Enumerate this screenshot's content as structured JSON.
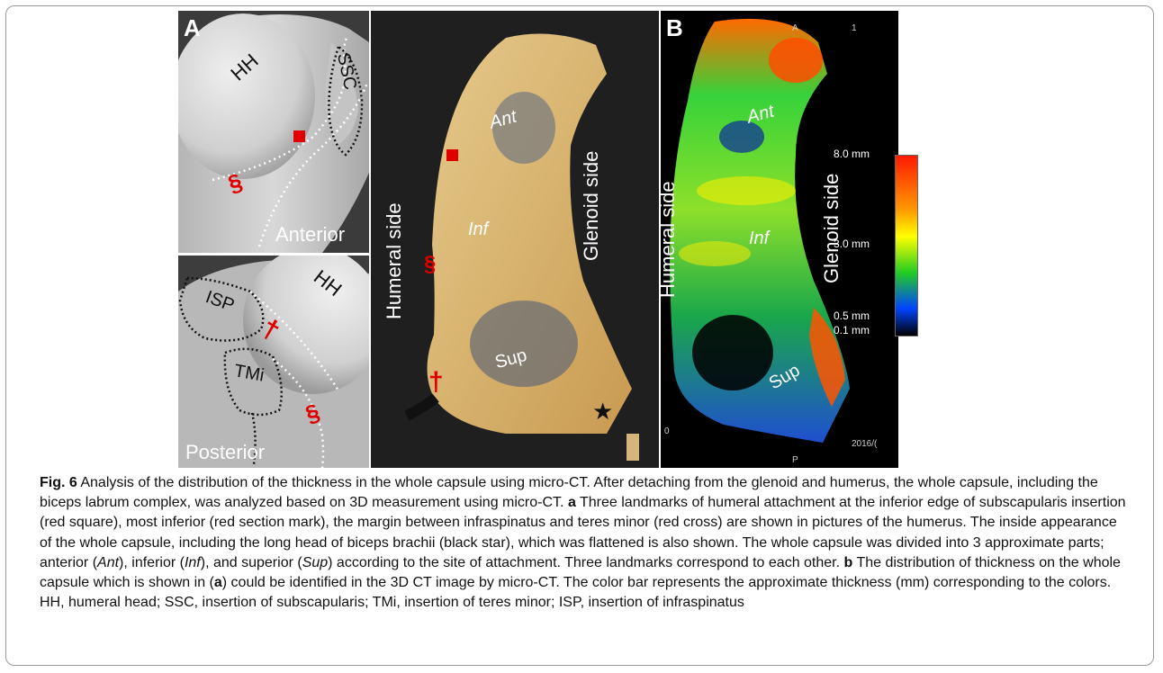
{
  "figure": {
    "panel_a_label": "A",
    "panel_b_label": "B",
    "humerus_anterior": {
      "hh": "HH",
      "ssc": "SSC",
      "view": "Anterior",
      "section_mark": "§"
    },
    "humerus_posterior": {
      "hh": "HH",
      "isp": "ISP",
      "tmi": "TMi",
      "view": "Posterior",
      "cross_mark": "†",
      "section_mark": "§"
    },
    "capsule": {
      "humeral_side": "Humeral side",
      "glenoid_side": "Glenoid side",
      "ant": "Ant",
      "inf": "Inf",
      "sup": "Sup",
      "section_mark": "§",
      "cross_mark": "†",
      "star": "★"
    },
    "micro_ct": {
      "humeral_side": "Humeral side",
      "glenoid_side": "Glenoid side",
      "ant": "Ant",
      "inf": "Inf",
      "sup": "Sup",
      "corner_top": "A",
      "corner_top_right": "1",
      "corner_bottom": "P",
      "corner_left": "0",
      "date_fragment": "2016/(",
      "colorbar_labels": [
        "8.0 mm",
        "3.0 mm",
        "0.5 mm",
        "0.1 mm"
      ]
    }
  },
  "caption": {
    "fig_label": "Fig. 6",
    "title": " Analysis of the distribution of the thickness in the whole capsule using micro-CT. After detaching from the glenoid and humerus, the whole capsule, including the biceps labrum complex, was analyzed based on 3D measurement using micro-CT. ",
    "a_label": "a",
    "a_text_1": " Three landmarks of humeral attachment at the inferior edge of subscapularis insertion (red square), most inferior (red section mark), the margin between infraspinatus and teres minor (red cross) are shown in pictures of the humerus. The inside appearance of the whole capsule, including the long head of biceps brachii (black star), which was flattened is also shown. The whole capsule was divided into 3 approximate parts; anterior (",
    "ant": "Ant",
    "a_text_2": "), inferior (",
    "inf": "Inf",
    "a_text_3": "), and superior (",
    "sup": "Sup",
    "a_text_4": ") according to the site of attachment. Three landmarks correspond to each other. ",
    "b_label": "b",
    "b_text_1": " The distribution of thickness on the whole capsule which is shown in (",
    "b_ref": "a",
    "b_text_2": ") could be identified in the 3D CT image by micro-CT. The color bar represents the approximate thickness (mm) corresponding to the colors. HH, humeral head; SSC, insertion of subscapularis; TMi, insertion of teres minor; ISP, insertion of infraspinatus"
  }
}
